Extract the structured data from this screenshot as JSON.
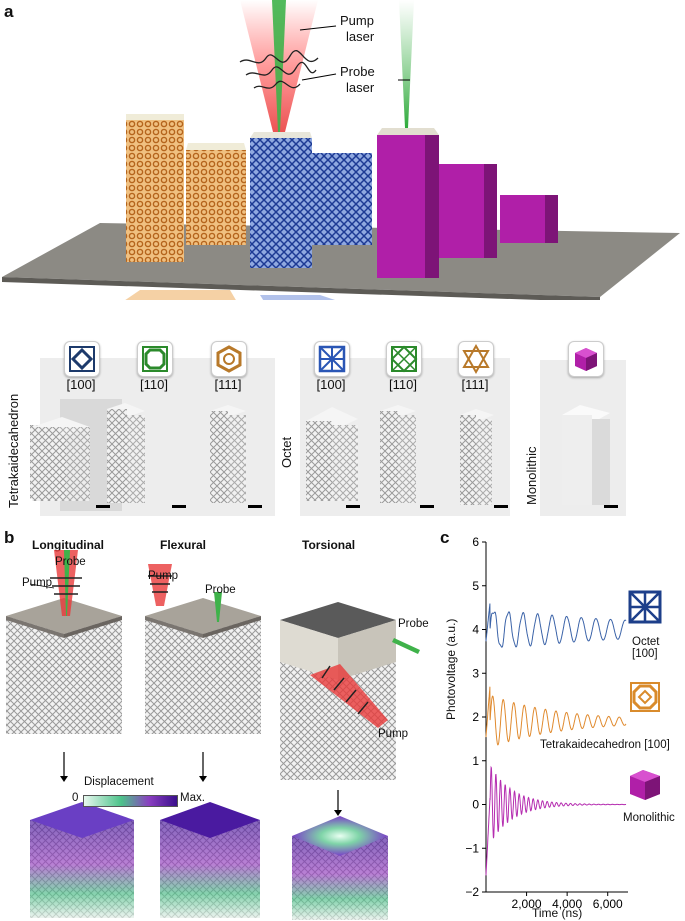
{
  "panel_a": {
    "letter": "a",
    "pump_label_line1": "Pump",
    "pump_label_line2": "laser",
    "probe_label_line1": "Probe",
    "probe_label_line2": "laser",
    "groups": [
      {
        "name": "Tetrakaidecahedron",
        "directions": [
          "[100]",
          "[110]",
          "[111]"
        ],
        "color": "#d9822b"
      },
      {
        "name": "Octet",
        "directions": [
          "[100]",
          "[110]",
          "[111]"
        ],
        "color": "#3a5fc8"
      },
      {
        "name": "Monolithic",
        "directions": [],
        "color": "#b03aa8"
      }
    ]
  },
  "panel_b": {
    "letter": "b",
    "modes": [
      "Longitudinal",
      "Flexural",
      "Torsional"
    ],
    "pump_label": "Pump",
    "probe_label": "Probe",
    "displacement_label": "Displacement",
    "scale_min": "0",
    "scale_max": "Max."
  },
  "panel_c": {
    "letter": "c",
    "series_labels": [
      "Octet [100]",
      "Tetrakaidecahedron [100]",
      "Monolithic"
    ]
  },
  "chart_data": {
    "type": "line",
    "title": "",
    "xlabel": "Time (ns)",
    "ylabel": "Photovoltage (a.u.)",
    "xlim": [
      0,
      7000
    ],
    "ylim": [
      -2,
      6
    ],
    "x_ticks": [
      2000,
      4000,
      6000
    ],
    "x_tick_labels": [
      "2,000",
      "4,000",
      "6,000"
    ],
    "y_ticks": [
      -2,
      -1,
      0,
      1,
      2,
      3,
      4,
      5,
      6
    ],
    "y_tick_labels": [
      "−2",
      "−1",
      "0",
      "1",
      "2",
      "3",
      "4",
      "5",
      "6"
    ],
    "grid": false,
    "series": [
      {
        "name": "Octet [100]",
        "color": "#3b63a8",
        "offset": 4,
        "amplitude": 0.45,
        "period_ns": 720,
        "decay_ns": 9000
      },
      {
        "name": "Tetrakaidecahedron [100]",
        "color": "#e08a2e",
        "offset": 1.9,
        "amplitude": 0.6,
        "period_ns": 520,
        "decay_ns": 3500
      },
      {
        "name": "Monolithic",
        "color": "#b52db0",
        "offset": 0,
        "amplitude": 0.9,
        "period_ns": 230,
        "decay_ns": 1100
      }
    ]
  }
}
